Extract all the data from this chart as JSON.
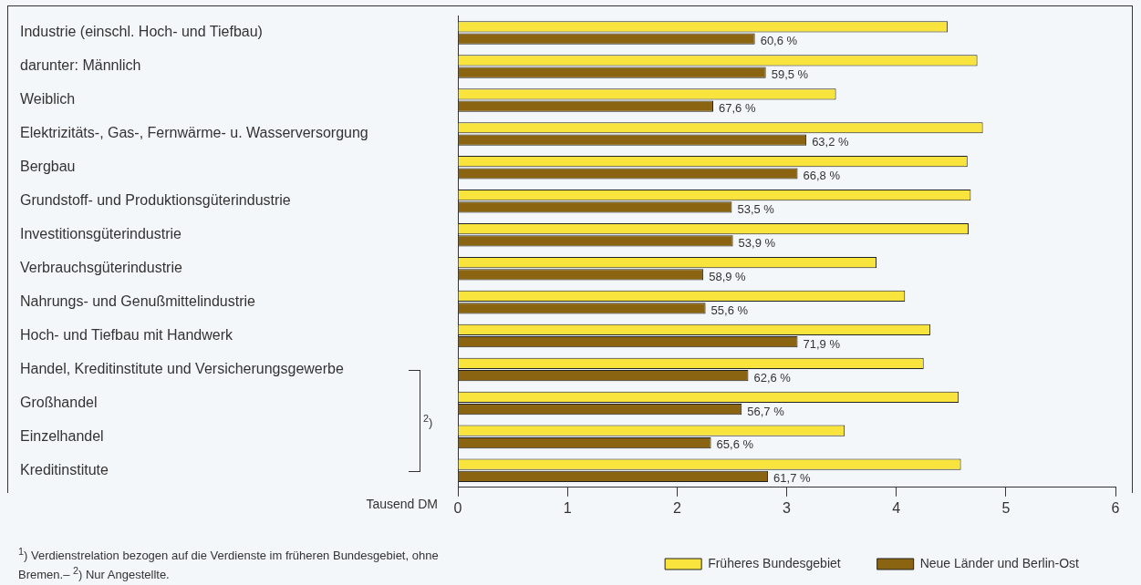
{
  "chart_data": {
    "type": "bar",
    "orientation": "horizontal",
    "xlabel": "Tausend DM",
    "categories": [
      "Industrie (einschl. Hoch- und Tiefbau)",
      "darunter: Männlich",
      "Weiblich",
      "Elektrizitäts-, Gas-, Fernwärme- u. Wasserversorgung",
      "Bergbau",
      "Grundstoff- und Produktionsgüterindustrie",
      "Investitionsgüterindustrie",
      "Verbrauchsgüterindustrie",
      "Nahrungs- und Genußmittelindustrie",
      "Hoch- und Tiefbau mit Handwerk",
      "Handel, Kreditinstitute und Versicherungsgewerbe",
      "Großhandel",
      "Einzelhandel",
      "Kreditinstitute"
    ],
    "series": [
      {
        "name": "Früheres Bundesgebiet",
        "color": "#f8e43c",
        "values": [
          4.47,
          4.74,
          3.45,
          4.79,
          4.65,
          4.68,
          4.66,
          3.82,
          4.08,
          4.31,
          4.25,
          4.57,
          3.53,
          4.59
        ]
      },
      {
        "name": "Neue Länder und Berlin-Ost",
        "color": "#8a6410",
        "values": [
          2.71,
          2.81,
          2.33,
          3.18,
          3.1,
          2.5,
          2.51,
          2.24,
          2.26,
          3.1,
          2.65,
          2.59,
          2.31,
          2.83
        ]
      }
    ],
    "xlim": [
      0,
      6
    ],
    "xticks": [
      0,
      1,
      2,
      3,
      4,
      5,
      6
    ],
    "grid": false,
    "legend": "bottom right",
    "annotations": [
      "$^{1}$) Verdienstrelation bezogen auf die Verdienste im früheren Bundesgebiet, ohne Bremen.– $^{2}$) Nur Angestellte.",
      "$^{2}$)",
      {
        "text": "60,6 %",
        "x": 2.71,
        "y": "Industrie (einschl. Hoch- und Tiefbau)"
      },
      {
        "text": "59,5 %",
        "x": 2.81,
        "y": "darunter: Männlich"
      },
      {
        "text": "67,6 %",
        "x": 2.33,
        "y": "Weiblich"
      },
      {
        "text": "63,2 %",
        "x": 3.18,
        "y": "Elektrizitäts-, Gas-, Fernwärme- u. Wasserversorgung"
      },
      {
        "text": "66,8 %",
        "x": 3.1,
        "y": "Bergbau"
      },
      {
        "text": "53,5 %",
        "x": 2.5,
        "y": "Grundstoff- und Produktionsgüterindustrie"
      },
      {
        "text": "53,9 %",
        "x": 2.51,
        "y": "Investitionsgüterindustrie"
      },
      {
        "text": "58,9 %",
        "x": 2.24,
        "y": "Verbrauchsgüterindustrie"
      },
      {
        "text": "55,6 %",
        "x": 2.26,
        "y": "Nahrungs- und Genußmittelindustrie"
      },
      {
        "text": "71,9 %",
        "x": 3.1,
        "y": "Hoch- und Tiefbau mit Handwerk"
      },
      {
        "text": "62,6 %",
        "x": 2.65,
        "y": "Handel, Kreditinstitute und Versicherungsgewerbe"
      },
      {
        "text": "56,7 %",
        "x": 2.59,
        "y": "Großhandel"
      },
      {
        "text": "65,6 %",
        "x": 2.31,
        "y": "Einzelhandel"
      },
      {
        "text": "61,7 %",
        "x": 2.83,
        "y": "Kreditinstitute"
      }
    ]
  }
}
